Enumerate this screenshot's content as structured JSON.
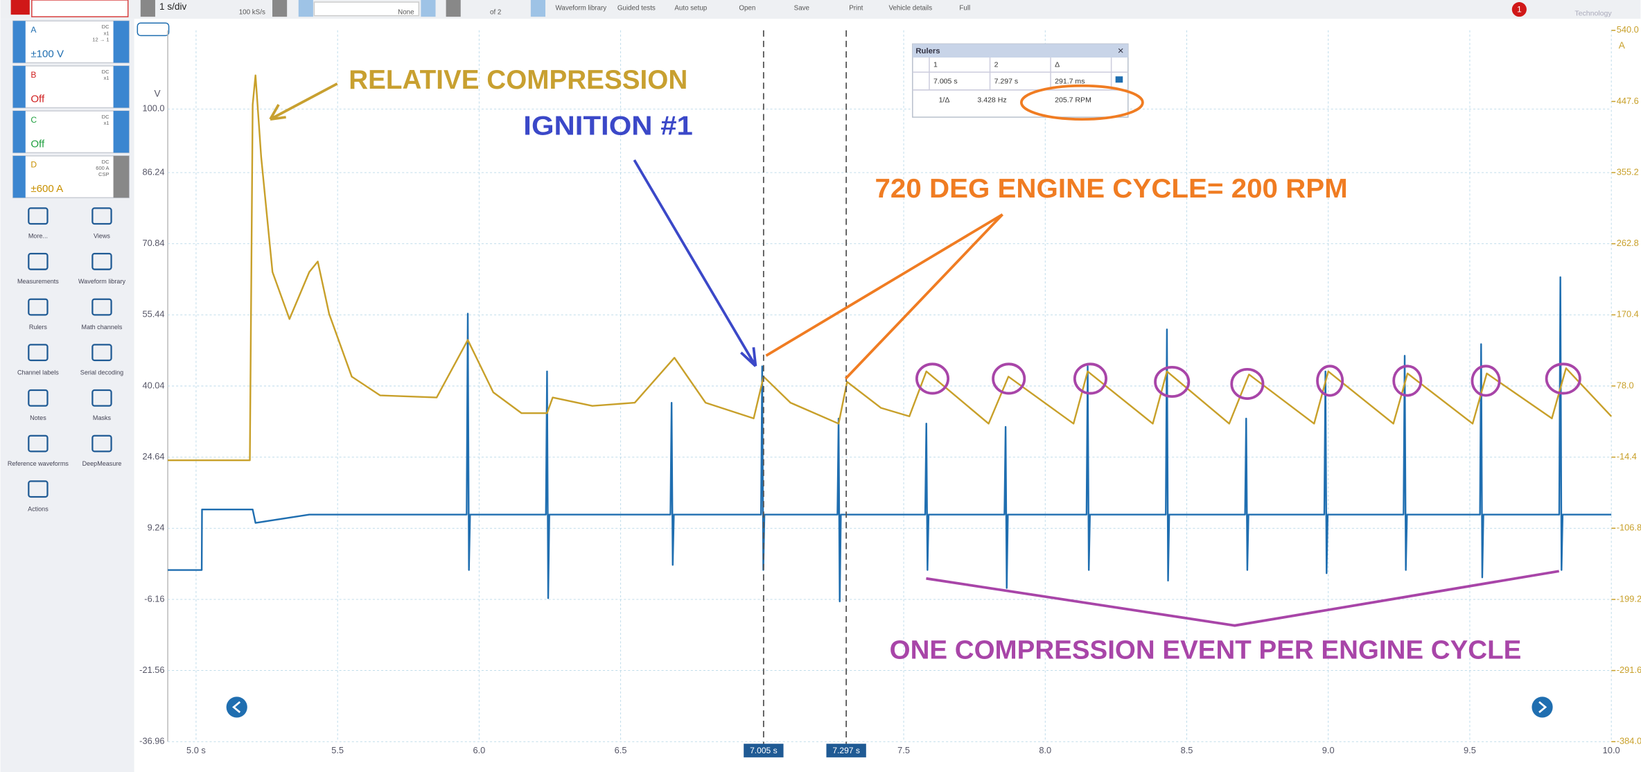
{
  "toolbar": {
    "timebase": "1 s/div",
    "samples": "100 kS/s",
    "trigger": "None",
    "buffer": "of 2",
    "items": [
      "Waveform library",
      "Guided tests",
      "Auto setup",
      "Open",
      "Save",
      "Print",
      "Vehicle details",
      "Full"
    ],
    "badge": "1",
    "brand": "Technology"
  },
  "channels": [
    {
      "letter": "A",
      "coupling": "DC",
      "probe": "x1",
      "extra": "12 → 1",
      "range": "±100 V"
    },
    {
      "letter": "B",
      "coupling": "DC",
      "probe": "x1",
      "range": "Off"
    },
    {
      "letter": "C",
      "coupling": "DC",
      "probe": "x1",
      "range": "Off"
    },
    {
      "letter": "D",
      "coupling": "DC",
      "probe": "600 A",
      "extra": "CSP",
      "range": "±600 A"
    }
  ],
  "tools": [
    "More...",
    "Views",
    "Measurements",
    "Waveform library",
    "Rulers",
    "Math channels",
    "Channel labels",
    "Serial decoding",
    "Notes",
    "Masks",
    "Reference waveforms",
    "DeepMeasure",
    "Actions"
  ],
  "chart_data": {
    "type": "line",
    "y_label": "V",
    "y2_label": "A",
    "grid": true,
    "xlim": [
      4.9,
      10.0
    ],
    "xticks": [
      {
        "value": 5,
        "label": "5.0 s"
      },
      5.5,
      {
        "value": 6,
        "label": "6.0"
      },
      6.5,
      7.5,
      {
        "value": 8,
        "label": "8.0"
      },
      8.5,
      {
        "value": 9,
        "label": "9.0"
      },
      9.5,
      {
        "value": 10,
        "label": "10.0"
      }
    ],
    "ylim": [
      -36.96,
      117.04
    ],
    "yticks": [
      -36.96,
      -21.56,
      -6.16,
      9.24,
      24.64,
      40.04,
      55.44,
      70.84,
      86.24,
      {
        "value": 100,
        "label": "100.0"
      }
    ],
    "y2lim": [
      -384,
      540
    ],
    "y2ticks": [
      {
        "value": -384,
        "label": "-384.0"
      },
      -291.6,
      -199.2,
      -106.8,
      -14.4,
      {
        "value": 78,
        "label": "78.0"
      },
      170.4,
      262.8,
      355.2,
      447.6,
      {
        "value": 540,
        "label": "540.0"
      }
    ],
    "rulers": [
      {
        "value": 7.005,
        "label": "7.005 s"
      },
      {
        "value": 7.297,
        "label": "7.297 s"
      }
    ],
    "series": [
      {
        "color": "#1f6eb0",
        "x": [
          4.9,
          5.02,
          5.021,
          5.2,
          5.21,
          5.4,
          5.956,
          5.96,
          5.964,
          5.968,
          6.236,
          6.24,
          6.244,
          6.248,
          6.676,
          6.68,
          6.684,
          6.688,
          6.996,
          7.0,
          7.004,
          7.008,
          7.266,
          7.27,
          7.274,
          7.278,
          7.576,
          7.58,
          7.584,
          7.588,
          7.856,
          7.86,
          7.864,
          7.868,
          8.146,
          8.15,
          8.154,
          8.158,
          8.426,
          8.43,
          8.434,
          8.438,
          8.706,
          8.71,
          8.714,
          8.718,
          8.986,
          8.99,
          8.994,
          8.998,
          9.266,
          9.27,
          9.274,
          9.278,
          9.536,
          9.54,
          9.544,
          9.548,
          9.816,
          9.82,
          9.824,
          9.828,
          10.0
        ],
        "values": [
          0.2,
          0.2,
          13.3,
          13.3,
          10.4,
          12.2,
          12.2,
          55.7,
          0.2,
          12.2,
          12.2,
          43.2,
          -5.9,
          12.2,
          12.2,
          36.4,
          1.3,
          12.2,
          12.2,
          44.3,
          0.2,
          12.2,
          12.2,
          33.0,
          -6.6,
          12.2,
          12.2,
          31.9,
          0.2,
          12.2,
          12.2,
          31.2,
          -3.7,
          12.2,
          12.2,
          44.3,
          0.2,
          12.2,
          12.2,
          52.3,
          -2.1,
          12.2,
          12.2,
          33.0,
          0.2,
          12.2,
          12.2,
          43.2,
          -0.5,
          12.2,
          12.2,
          46.6,
          0.2,
          12.2,
          12.2,
          49.1,
          -1.4,
          12.2,
          12.2,
          63.6,
          0.2,
          12.2,
          12.2
        ]
      },
      {
        "color": "#c8a02a",
        "axis": "y2",
        "x": [
          4.9,
          5.19,
          5.2,
          5.21,
          5.23,
          5.27,
          5.33,
          5.4,
          5.43,
          5.47,
          5.55,
          5.65,
          5.85,
          5.96,
          6.05,
          6.15,
          6.24,
          6.26,
          6.4,
          6.55,
          6.69,
          6.8,
          6.97,
          7.005,
          7.1,
          7.27,
          7.3,
          7.42,
          7.52,
          7.58,
          7.8,
          7.87,
          8.1,
          8.15,
          8.38,
          8.43,
          8.65,
          8.72,
          8.95,
          9.0,
          9.23,
          9.28,
          9.51,
          9.56,
          9.79,
          9.84,
          10.0
        ],
        "values": [
          -18.5,
          -18.5,
          443.5,
          481.6,
          375.6,
          226.1,
          165.0,
          226.1,
          239.7,
          171.8,
          90.2,
          65.8,
          63.1,
          137.8,
          69.8,
          42.7,
          42.7,
          63.1,
          52.2,
          56.3,
          114.7,
          56.3,
          35.9,
          90.2,
          56.3,
          29.1,
          83.4,
          49.5,
          38.6,
          97.0,
          29.1,
          90.2,
          29.1,
          97.0,
          29.1,
          97.0,
          29.1,
          93.0,
          29.1,
          97.0,
          29.1,
          94.3,
          29.1,
          94.3,
          35.9,
          101.1,
          38.6
        ]
      }
    ]
  },
  "annotations": {
    "compression": "RELATIVE COMPRESSION",
    "ignition": "IGNITION #1",
    "cycle": "720 DEG ENGINE CYCLE=  200 RPM",
    "event": "ONE COMPRESSION EVENT PER ENGINE CYCLE"
  },
  "rulers_window": {
    "title": "Rulers",
    "header": [
      "1",
      "2",
      "Δ"
    ],
    "positions": [
      "7.005 s",
      "7.297 s",
      "291.7 ms"
    ],
    "inverse": [
      "1/Δ",
      "3.428 Hz",
      "205.7 RPM"
    ]
  }
}
